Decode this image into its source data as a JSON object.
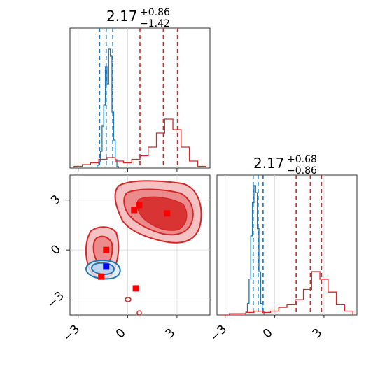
{
  "chart_data": [
    {
      "type": "histogram",
      "panel": "x-marginal",
      "title": {
        "value": "2.17",
        "plus": "+0.86",
        "minus": "−1.42"
      },
      "series": [
        {
          "color": "#1f77b4",
          "bins": [
            -1.8,
            -1.7,
            -1.6,
            -1.5,
            -1.4,
            -1.3,
            -1.2,
            -1.1,
            -1.0,
            -0.9,
            -0.8,
            -0.7,
            -0.6
          ],
          "counts": [
            2,
            5,
            12,
            30,
            45,
            72,
            60,
            85,
            80,
            40,
            20,
            6,
            1
          ],
          "quantiles": [
            -1.7,
            -1.3,
            -0.9
          ]
        },
        {
          "color": "#d62728",
          "bins": [
            -3.0,
            -2.5,
            -2.0,
            -1.5,
            -1.0,
            -0.5,
            0.0,
            0.5,
            1.0,
            1.5,
            2.0,
            2.5,
            3.0,
            3.5,
            4.0,
            4.5
          ],
          "counts": [
            1,
            2,
            3,
            5,
            6,
            4,
            3,
            5,
            7,
            12,
            20,
            28,
            22,
            12,
            4,
            1
          ],
          "quantiles": [
            0.75,
            2.17,
            3.03
          ]
        }
      ],
      "x_ticks": [
        "−3",
        "0",
        "3"
      ],
      "xlim": [
        -3.5,
        5.0
      ]
    },
    {
      "type": "contour",
      "panel": "joint",
      "x_ticks": [
        "−3",
        "0",
        "3"
      ],
      "y_ticks": [
        "−3",
        "0",
        "3"
      ],
      "xlim": [
        -3.5,
        5.0
      ],
      "ylim": [
        -3.9,
        4.5
      ],
      "red_points": [
        [
          0.4,
          2.4
        ],
        [
          0.7,
          2.7
        ],
        [
          2.4,
          2.2
        ],
        [
          -1.3,
          0.0
        ],
        [
          -1.6,
          -1.6
        ],
        [
          0.5,
          -2.3
        ]
      ],
      "blue_points": [
        [
          -1.3,
          -1.0
        ]
      ],
      "grid": true
    },
    {
      "type": "histogram",
      "panel": "y-marginal",
      "title": {
        "value": "2.17",
        "plus": "+0.68",
        "minus": "−0.86"
      },
      "series": [
        {
          "color": "#1f77b4",
          "bins": [
            -1.7,
            -1.6,
            -1.5,
            -1.4,
            -1.3,
            -1.2,
            -1.1,
            -1.0,
            -0.9,
            -0.8,
            -0.7
          ],
          "counts": [
            2,
            8,
            25,
            55,
            78,
            90,
            85,
            60,
            30,
            8,
            2
          ],
          "quantiles": [
            -1.3,
            -1.0,
            -0.7
          ]
        },
        {
          "color": "#d62728",
          "bins": [
            -3.0,
            -2.5,
            -2.0,
            -1.5,
            -1.0,
            -0.5,
            0.0,
            0.5,
            1.0,
            1.5,
            2.0,
            2.5,
            3.0,
            3.5,
            4.0,
            4.5
          ],
          "counts": [
            0,
            1,
            1,
            2,
            3,
            2,
            3,
            6,
            8,
            12,
            20,
            34,
            28,
            18,
            8,
            3
          ],
          "quantiles": [
            1.31,
            2.17,
            2.85
          ]
        }
      ],
      "x_ticks": [
        "−3",
        "0",
        "3"
      ],
      "xlim": [
        -3.5,
        5.0
      ]
    }
  ]
}
